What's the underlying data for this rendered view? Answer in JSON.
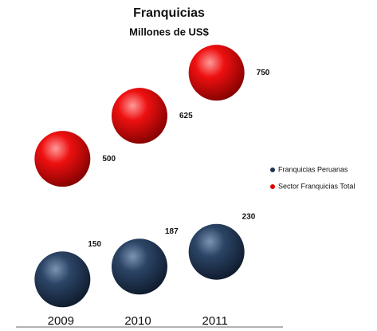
{
  "chart_data": {
    "type": "bubble",
    "title": "Franquicias",
    "subtitle": "Millones de US$",
    "categories": [
      "2009",
      "2010",
      "2011"
    ],
    "series": [
      {
        "name": "Franquicias Peruanas",
        "color": "#1f3550",
        "values": [
          150,
          187,
          230
        ]
      },
      {
        "name": "Sector Franquicias Total",
        "color": "#e00000",
        "values": [
          500,
          625,
          750
        ]
      }
    ],
    "ylim": [
      0,
      850
    ]
  }
}
